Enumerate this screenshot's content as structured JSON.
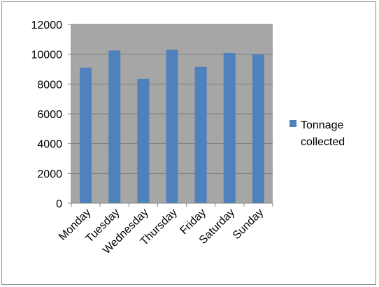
{
  "chart_data": {
    "type": "bar",
    "categories": [
      "Monday",
      "Tuesday",
      "Wednesday",
      "Thursday",
      "Friday",
      "Saturday",
      "Sunday"
    ],
    "series": [
      {
        "name": "Tonnage collected",
        "values": [
          9100,
          10250,
          8350,
          10300,
          9150,
          10080,
          9980
        ]
      }
    ],
    "title": "",
    "xlabel": "",
    "ylabel": "",
    "ylim": [
      0,
      12000
    ],
    "yticks": [
      "0",
      "2000",
      "4000",
      "6000",
      "8000",
      "10000",
      "12000"
    ],
    "grid": true,
    "legend_position": "right",
    "legend_lines": [
      "Tonnage",
      "collected"
    ],
    "colors": {
      "bar": "#4f81bd",
      "plot_area": "#a6a6a6",
      "gridline": "#7f7f7f",
      "axis": "#868686"
    }
  }
}
